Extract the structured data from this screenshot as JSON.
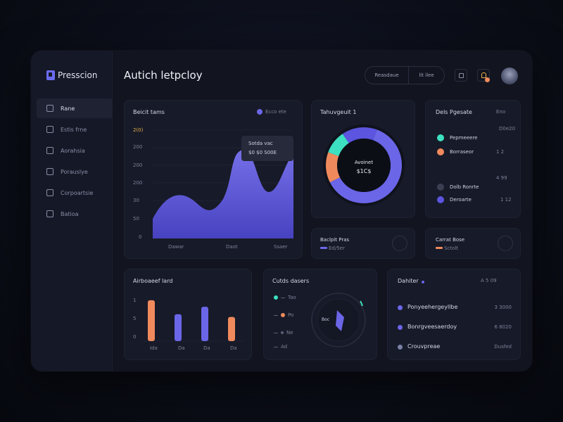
{
  "app": {
    "brand": "Presscion",
    "title": "Autich letpcloy"
  },
  "header": {
    "pill_left": "Reasdaue",
    "pill_right": "lit ilee"
  },
  "sidebar": {
    "items": [
      {
        "label": "Rane"
      },
      {
        "label": "Estis frne"
      },
      {
        "label": "Aorahsia"
      },
      {
        "label": "Porauslye"
      },
      {
        "label": "Corpoartsie"
      },
      {
        "label": "Batioa"
      }
    ]
  },
  "area_card": {
    "title": "Beicit tams",
    "legend": "Ecco ete",
    "tooltip_line1": "Sotda vac",
    "tooltip_line2": "$0 $0 S00E",
    "y_ticks": [
      "2(0)",
      "200",
      "200",
      "200",
      "30",
      "50",
      "0"
    ],
    "x_ticks": [
      "Dawar",
      "Daot",
      "Ssaer"
    ]
  },
  "donut_card": {
    "title": "Tahuvgeuit 1",
    "center_line1": "Avoinet",
    "center_line2": "$1C$",
    "segments": [
      {
        "color": "#6b66e8",
        "value": 62
      },
      {
        "color": "#f08a5d",
        "value": 13
      },
      {
        "color": "#3de0c0",
        "value": 10
      },
      {
        "color": "#5b55e0",
        "value": 15
      }
    ]
  },
  "legend_card": {
    "title": "Dels Pgesate",
    "title_badge": "Eno",
    "items": [
      {
        "label": "Pepmeeere",
        "sub": "D0e20",
        "color": "#3de0c0"
      },
      {
        "label": "Borraseor",
        "sub": "1 2",
        "color": "#f08a5d"
      },
      {
        "label": "Dolb Ronrte",
        "sub": "4 99",
        "color": "#3a3e52"
      },
      {
        "label": "Deroarte",
        "sub": "1 12",
        "color": "#5b55e0"
      }
    ]
  },
  "stat_card_1": {
    "title": "Baclpit Pras",
    "sub": "Ed/5er",
    "icon": "db-icon"
  },
  "stat_card_2": {
    "title": "Carrat Bose",
    "sub": "Sctolt",
    "icon": "clock-icon"
  },
  "bar_card": {
    "title": "Airboaeef lard",
    "y_ticks": [
      "1",
      "5",
      "0"
    ],
    "x_ticks": [
      "Ida",
      "Da",
      "Da",
      "Da"
    ],
    "chart_data": {
      "type": "bar",
      "categories": [
        "Ida",
        "Da",
        "Da",
        "Da"
      ],
      "values": [
        0.88,
        0.58,
        0.74,
        0.52
      ],
      "colors": [
        "#f08a5d",
        "#6b66e8",
        "#6b66e8",
        "#f08a5d"
      ]
    }
  },
  "gauge_card": {
    "title": "Cutds dasers",
    "items": [
      {
        "label": "Tao",
        "color": "#3de0c0"
      },
      {
        "label": "Po",
        "color": "#f08a5d"
      },
      {
        "label": "Ne",
        "color": "#5a5e78"
      },
      {
        "label": "Ad",
        "color": "#5a5e78"
      }
    ],
    "center_label": "Boc"
  },
  "list_card": {
    "title": "Dahiter",
    "header_right": "A 5 09",
    "rows": [
      {
        "label": "Ponyeehergeyllbe",
        "value": "3 3000",
        "color": "#6b66e8"
      },
      {
        "label": "Bonrgveesaerdoy",
        "value": "6 8020",
        "color": "#6b66e8"
      },
      {
        "label": "Crouvpreae",
        "value": "Dusfed",
        "color": "#6b66e8"
      }
    ]
  }
}
